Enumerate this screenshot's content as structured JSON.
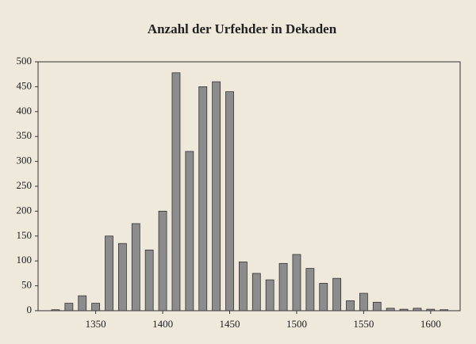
{
  "chart_data": {
    "type": "bar",
    "title": "Anzahl der Urfehder in Dekaden",
    "x": [
      1320,
      1330,
      1340,
      1350,
      1360,
      1370,
      1380,
      1390,
      1400,
      1410,
      1420,
      1430,
      1440,
      1450,
      1460,
      1470,
      1480,
      1490,
      1500,
      1510,
      1520,
      1530,
      1540,
      1550,
      1560,
      1570,
      1580,
      1590,
      1600,
      1610
    ],
    "values": [
      2,
      15,
      30,
      15,
      150,
      135,
      175,
      122,
      200,
      478,
      320,
      450,
      460,
      440,
      98,
      75,
      62,
      95,
      113,
      85,
      55,
      65,
      20,
      35,
      17,
      5,
      3,
      5,
      3,
      2
    ],
    "color": "#8c8c8c",
    "xlim": [
      1307,
      1622
    ],
    "xticks": [
      1350,
      1400,
      1450,
      1500,
      1550,
      1600
    ],
    "ylim": [
      0,
      500
    ],
    "yticks": [
      0,
      50,
      100,
      150,
      200,
      250,
      300,
      350,
      400,
      450,
      500
    ]
  }
}
